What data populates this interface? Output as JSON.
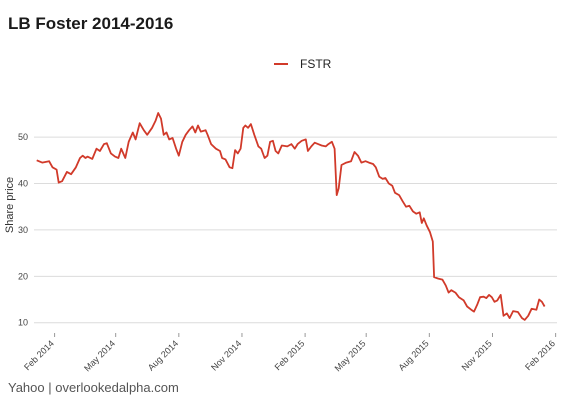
{
  "chart_data": {
    "type": "line",
    "title": "LB Foster 2014-2016",
    "source": "Yahoo | overlookedalpha.com",
    "ylabel": "Share price",
    "xlabel": "",
    "ylim": [
      8,
      58
    ],
    "xlim": [
      "2014-01-02",
      "2016-02-03"
    ],
    "yticks": [
      10,
      20,
      30,
      40,
      50
    ],
    "xticks": [
      {
        "date": "2014-02-01",
        "label": "Feb 2014"
      },
      {
        "date": "2014-05-01",
        "label": "May 2014"
      },
      {
        "date": "2014-08-01",
        "label": "Aug 2014"
      },
      {
        "date": "2014-11-01",
        "label": "Nov 2014"
      },
      {
        "date": "2015-02-01",
        "label": "Feb 2015"
      },
      {
        "date": "2015-05-01",
        "label": "May 2015"
      },
      {
        "date": "2015-08-01",
        "label": "Aug 2015"
      },
      {
        "date": "2015-11-01",
        "label": "Nov 2015"
      },
      {
        "date": "2016-02-01",
        "label": "Feb 2016"
      }
    ],
    "grid": "horizontal",
    "legend": "top-center",
    "series": [
      {
        "name": "FSTR",
        "color": "#d13a2a",
        "points": [
          [
            "2014-01-06",
            45.0
          ],
          [
            "2014-01-14",
            44.5
          ],
          [
            "2014-01-24",
            44.8
          ],
          [
            "2014-01-29",
            43.5
          ],
          [
            "2014-02-04",
            43.0
          ],
          [
            "2014-02-07",
            40.2
          ],
          [
            "2014-02-12",
            40.5
          ],
          [
            "2014-02-19",
            42.5
          ],
          [
            "2014-02-25",
            42.0
          ],
          [
            "2014-03-04",
            43.5
          ],
          [
            "2014-03-10",
            45.5
          ],
          [
            "2014-03-14",
            46.0
          ],
          [
            "2014-03-18",
            45.5
          ],
          [
            "2014-03-21",
            45.8
          ],
          [
            "2014-03-28",
            45.3
          ],
          [
            "2014-04-03",
            47.5
          ],
          [
            "2014-04-08",
            47.0
          ],
          [
            "2014-04-14",
            48.5
          ],
          [
            "2014-04-18",
            48.7
          ],
          [
            "2014-04-24",
            46.5
          ],
          [
            "2014-04-30",
            45.8
          ],
          [
            "2014-05-05",
            45.5
          ],
          [
            "2014-05-09",
            47.5
          ],
          [
            "2014-05-15",
            45.5
          ],
          [
            "2014-05-20",
            49.0
          ],
          [
            "2014-05-26",
            51.0
          ],
          [
            "2014-05-30",
            49.5
          ],
          [
            "2014-06-05",
            53.0
          ],
          [
            "2014-06-11",
            51.5
          ],
          [
            "2014-06-16",
            50.5
          ],
          [
            "2014-06-23",
            52.0
          ],
          [
            "2014-06-28",
            53.5
          ],
          [
            "2014-07-02",
            55.2
          ],
          [
            "2014-07-06",
            54.0
          ],
          [
            "2014-07-10",
            50.5
          ],
          [
            "2014-07-14",
            51.0
          ],
          [
            "2014-07-18",
            49.5
          ],
          [
            "2014-07-23",
            49.8
          ],
          [
            "2014-07-28",
            47.5
          ],
          [
            "2014-08-01",
            46.0
          ],
          [
            "2014-08-06",
            49.0
          ],
          [
            "2014-08-11",
            50.5
          ],
          [
            "2014-08-16",
            51.5
          ],
          [
            "2014-08-21",
            52.3
          ],
          [
            "2014-08-25",
            51.0
          ],
          [
            "2014-08-29",
            52.5
          ],
          [
            "2014-09-02",
            51.2
          ],
          [
            "2014-09-09",
            51.5
          ],
          [
            "2014-09-12",
            50.5
          ],
          [
            "2014-09-17",
            48.5
          ],
          [
            "2014-09-24",
            47.5
          ],
          [
            "2014-09-30",
            47.0
          ],
          [
            "2014-10-03",
            45.5
          ],
          [
            "2014-10-08",
            45.2
          ],
          [
            "2014-10-14",
            43.5
          ],
          [
            "2014-10-18",
            43.3
          ],
          [
            "2014-10-22",
            47.2
          ],
          [
            "2014-10-26",
            46.5
          ],
          [
            "2014-10-30",
            47.5
          ],
          [
            "2014-11-03",
            52.0
          ],
          [
            "2014-11-06",
            52.5
          ],
          [
            "2014-11-10",
            52.0
          ],
          [
            "2014-11-14",
            52.8
          ],
          [
            "2014-11-19",
            50.5
          ],
          [
            "2014-11-25",
            48.0
          ],
          [
            "2014-11-29",
            47.5
          ],
          [
            "2014-12-04",
            45.5
          ],
          [
            "2014-12-08",
            46.0
          ],
          [
            "2014-12-12",
            49.0
          ],
          [
            "2014-12-16",
            49.2
          ],
          [
            "2014-12-20",
            47.0
          ],
          [
            "2014-12-24",
            46.5
          ],
          [
            "2014-12-29",
            48.2
          ],
          [
            "2015-01-06",
            48.0
          ],
          [
            "2015-01-12",
            48.5
          ],
          [
            "2015-01-17",
            47.5
          ],
          [
            "2015-01-21",
            48.5
          ],
          [
            "2015-01-27",
            49.2
          ],
          [
            "2015-02-02",
            49.5
          ],
          [
            "2015-02-05",
            47.0
          ],
          [
            "2015-02-10",
            48.0
          ],
          [
            "2015-02-15",
            48.8
          ],
          [
            "2015-02-20",
            48.5
          ],
          [
            "2015-02-25",
            48.2
          ],
          [
            "2015-03-03",
            48.0
          ],
          [
            "2015-03-07",
            48.5
          ],
          [
            "2015-03-12",
            49.0
          ],
          [
            "2015-03-16",
            47.5
          ],
          [
            "2015-03-19",
            37.5
          ],
          [
            "2015-03-22",
            39.0
          ],
          [
            "2015-03-26",
            44.0
          ],
          [
            "2015-04-02",
            44.5
          ],
          [
            "2015-04-09",
            44.8
          ],
          [
            "2015-04-14",
            46.8
          ],
          [
            "2015-04-19",
            46.0
          ],
          [
            "2015-04-24",
            44.5
          ],
          [
            "2015-04-30",
            44.8
          ],
          [
            "2015-05-05",
            44.5
          ],
          [
            "2015-05-11",
            44.2
          ],
          [
            "2015-05-15",
            43.5
          ],
          [
            "2015-05-20",
            41.5
          ],
          [
            "2015-05-25",
            41.0
          ],
          [
            "2015-05-29",
            41.2
          ],
          [
            "2015-06-03",
            40.0
          ],
          [
            "2015-06-08",
            39.5
          ],
          [
            "2015-06-12",
            38.0
          ],
          [
            "2015-06-18",
            37.5
          ],
          [
            "2015-06-23",
            36.2
          ],
          [
            "2015-06-28",
            35.0
          ],
          [
            "2015-07-03",
            35.2
          ],
          [
            "2015-07-08",
            34.0
          ],
          [
            "2015-07-13",
            33.5
          ],
          [
            "2015-07-18",
            33.8
          ],
          [
            "2015-07-21",
            31.5
          ],
          [
            "2015-07-24",
            32.5
          ],
          [
            "2015-07-28",
            31.0
          ],
          [
            "2015-08-02",
            29.5
          ],
          [
            "2015-08-06",
            27.5
          ],
          [
            "2015-08-08",
            19.8
          ],
          [
            "2015-08-14",
            19.5
          ],
          [
            "2015-08-20",
            19.3
          ],
          [
            "2015-08-25",
            18.0
          ],
          [
            "2015-08-29",
            16.5
          ],
          [
            "2015-09-02",
            17.0
          ],
          [
            "2015-09-08",
            16.5
          ],
          [
            "2015-09-13",
            15.5
          ],
          [
            "2015-09-20",
            14.8
          ],
          [
            "2015-09-25",
            13.5
          ],
          [
            "2015-10-01",
            12.8
          ],
          [
            "2015-10-05",
            12.4
          ],
          [
            "2015-10-10",
            14.0
          ],
          [
            "2015-10-14",
            15.5
          ],
          [
            "2015-10-19",
            15.6
          ],
          [
            "2015-10-23",
            15.3
          ],
          [
            "2015-10-27",
            16.0
          ],
          [
            "2015-10-31",
            15.5
          ],
          [
            "2015-11-04",
            14.5
          ],
          [
            "2015-11-08",
            14.8
          ],
          [
            "2015-11-13",
            16.0
          ],
          [
            "2015-11-17",
            11.5
          ],
          [
            "2015-11-22",
            12.0
          ],
          [
            "2015-11-26",
            11.0
          ],
          [
            "2015-12-01",
            12.5
          ],
          [
            "2015-12-08",
            12.3
          ],
          [
            "2015-12-14",
            11.0
          ],
          [
            "2015-12-18",
            10.6
          ],
          [
            "2015-12-23",
            11.5
          ],
          [
            "2015-12-28",
            13.0
          ],
          [
            "2016-01-04",
            12.8
          ],
          [
            "2016-01-08",
            15.0
          ],
          [
            "2016-01-12",
            14.5
          ],
          [
            "2016-01-16",
            13.5
          ]
        ]
      }
    ]
  }
}
